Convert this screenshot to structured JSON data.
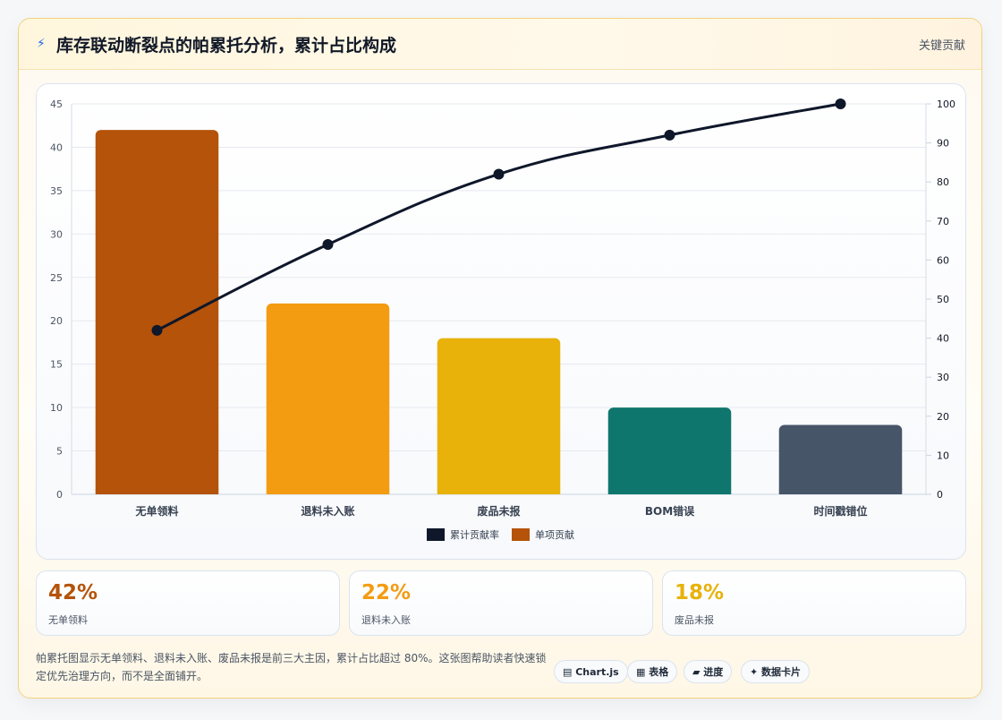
{
  "header": {
    "icon": "lightning-icon",
    "title": "库存联动断裂点的帕累托分析，累计占比构成",
    "tag": "关键贡献"
  },
  "chart_data": {
    "type": "bar",
    "categories": [
      "无单领料",
      "退料未入账",
      "废品未报",
      "BOM错误",
      "时间戳错位"
    ],
    "series": [
      {
        "name": "单项贡献",
        "type": "bar",
        "axis": "left",
        "values": [
          42,
          22,
          18,
          10,
          8
        ],
        "colors": [
          "#b45309",
          "#f39c12",
          "#e8b20a",
          "#0f766e",
          "#475569"
        ]
      },
      {
        "name": "累计贡献率",
        "type": "line",
        "axis": "right",
        "values": [
          42,
          64,
          82,
          92,
          100
        ],
        "color": "#0f172a"
      }
    ],
    "ylim": [
      0,
      45
    ],
    "y_ticks": [
      0,
      5,
      10,
      15,
      20,
      25,
      30,
      35,
      40,
      45
    ],
    "y2lim": [
      0,
      100
    ],
    "y2_ticks": [
      0,
      10,
      20,
      30,
      40,
      50,
      60,
      70,
      80,
      90,
      100
    ],
    "legend_position": "bottom",
    "grid": true
  },
  "kpis": [
    {
      "value": "42%",
      "label": "无单领料",
      "color": "#b45309"
    },
    {
      "value": "22%",
      "label": "退料未入账",
      "color": "#f39c12"
    },
    {
      "value": "18%",
      "label": "废品未报",
      "color": "#e8b20a"
    }
  ],
  "footer": {
    "description": "帕累托图显示无单领料、退料未入账、废品未报是前三大主因，累计占比超过 80%。这张图帮助读者快速锁定优先治理方向，而不是全面铺开。",
    "chips": [
      "▤ Chart.js",
      "▦ 表格",
      "▰ 进度",
      "✦ 数据卡片"
    ]
  }
}
